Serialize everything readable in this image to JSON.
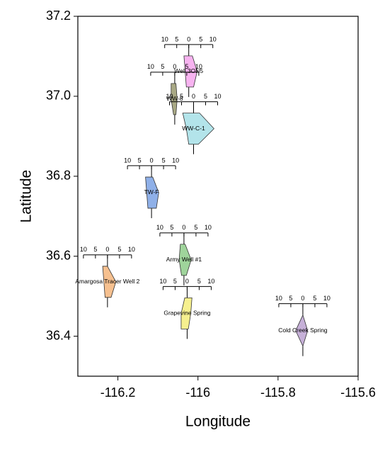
{
  "chart_data": {
    "type": "stiff-map",
    "xlabel": "Longitude",
    "ylabel": "Latitude",
    "xlim": [
      -116.3,
      -115.6
    ],
    "ylim": [
      36.3,
      37.2
    ],
    "xticks": [
      -116.2,
      -116.0,
      -115.8,
      -115.6
    ],
    "yticks": [
      {
        "value": 36.4,
        "label": "36.4"
      },
      {
        "value": 36.6,
        "label": "36.6"
      },
      {
        "value": 36.8,
        "label": "36.8"
      },
      {
        "value": 37.0,
        "label": "37.0"
      },
      {
        "value": 37.2,
        "label": "37.2"
      }
    ],
    "scale_ticks": [
      {
        "value": -10,
        "label": "10"
      },
      {
        "value": -5,
        "label": "5"
      },
      0,
      5,
      10
    ],
    "stations": [
      {
        "name": "Well 3ON5",
        "x": -116.023,
        "y": 37.062,
        "color": "#f7b3f0",
        "left": [
          2,
          1.5,
          1
        ],
        "right": [
          1.5,
          3.5,
          2
        ]
      },
      {
        "name": "WW-8",
        "x": -116.058,
        "y": 36.993,
        "color": "#a9a985",
        "left": [
          1.5,
          1.5,
          0.5
        ],
        "right": [
          0.5,
          1,
          0.5
        ]
      },
      {
        "name": "WW-C-1",
        "x": -116.011,
        "y": 36.919,
        "color": "#b3e4ea",
        "left": [
          4.5,
          3,
          2
        ],
        "right": [
          2.5,
          8.5,
          2
        ]
      },
      {
        "name": "TW-F",
        "x": -116.116,
        "y": 36.759,
        "color": "#8fb0e8",
        "left": [
          2.5,
          2,
          1.5
        ],
        "right": [
          0.5,
          3,
          2
        ]
      },
      {
        "name": "Army Well #1",
        "x": -116.035,
        "y": 36.591,
        "color": "#9fd49b",
        "left": [
          1.5,
          2,
          1
        ],
        "right": [
          0.5,
          3,
          1
        ]
      },
      {
        "name": "Amargosa Tracer Well 2",
        "x": -116.226,
        "y": 36.536,
        "color": "#f6c08f",
        "left": [
          2,
          1.5,
          1
        ],
        "right": [
          0,
          3.5,
          1.5
        ]
      },
      {
        "name": "Grapevine Spring",
        "x": -116.027,
        "y": 36.457,
        "color": "#f6f08f",
        "left": [
          1,
          2.5,
          2.5
        ],
        "right": [
          2,
          1.5,
          0.5
        ]
      },
      {
        "name": "Cold Creek Spring",
        "x": -115.738,
        "y": 36.414,
        "color": "#c6b0d8",
        "left": [
          0,
          3,
          0
        ],
        "right": [
          0,
          2,
          0
        ]
      }
    ]
  }
}
